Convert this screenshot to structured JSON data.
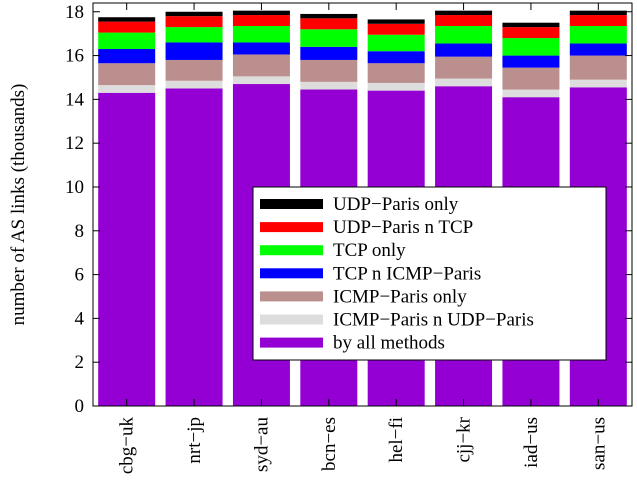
{
  "chart_data": {
    "type": "bar",
    "stacked": true,
    "ylabel": "number of AS links (thousands)",
    "xlabel": "",
    "ylim": [
      0,
      18.4
    ],
    "yticks": [
      0,
      2,
      4,
      6,
      8,
      10,
      12,
      14,
      16,
      18
    ],
    "grid": false,
    "legend_position": "center-right",
    "categories": [
      "cbg−uk",
      "nrt−jp",
      "syd−au",
      "bcn−es",
      "hel−fi",
      "cjj−kr",
      "iad−us",
      "san−us"
    ],
    "series": [
      {
        "name": "by all methods",
        "color": "#9400d3",
        "values": [
          14.3,
          14.5,
          14.7,
          14.45,
          14.4,
          14.6,
          14.1,
          14.55
        ]
      },
      {
        "name": "ICMP−Paris n UDP−Paris",
        "color": "#dddddd",
        "values": [
          0.35,
          0.35,
          0.35,
          0.35,
          0.35,
          0.35,
          0.35,
          0.35
        ]
      },
      {
        "name": "ICMP−Paris only",
        "color": "#bc8f8f",
        "values": [
          1.0,
          0.95,
          1.0,
          1.0,
          0.9,
          1.0,
          1.0,
          1.1
        ]
      },
      {
        "name": "TCP n ICMP−Paris",
        "color": "#0000ff",
        "values": [
          0.65,
          0.8,
          0.55,
          0.6,
          0.55,
          0.6,
          0.55,
          0.55
        ]
      },
      {
        "name": "TCP only",
        "color": "#00ff00",
        "values": [
          0.75,
          0.7,
          0.75,
          0.8,
          0.75,
          0.8,
          0.8,
          0.8
        ]
      },
      {
        "name": "UDP−Paris n TCP",
        "color": "#ff0000",
        "values": [
          0.5,
          0.5,
          0.5,
          0.5,
          0.5,
          0.5,
          0.5,
          0.5
        ]
      },
      {
        "name": "UDP−Paris only",
        "color": "#000000",
        "values": [
          0.2,
          0.2,
          0.2,
          0.2,
          0.2,
          0.2,
          0.2,
          0.2
        ]
      }
    ],
    "legend_order": [
      "UDP−Paris only",
      "UDP−Paris n TCP",
      "TCP only",
      "TCP n ICMP−Paris",
      "ICMP−Paris only",
      "ICMP−Paris n UDP−Paris",
      "by all methods"
    ]
  }
}
